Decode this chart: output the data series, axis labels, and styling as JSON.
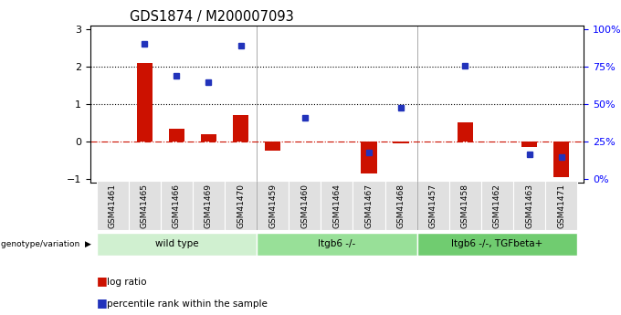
{
  "title": "GDS1874 / M200007093",
  "samples": [
    "GSM41461",
    "GSM41465",
    "GSM41466",
    "GSM41469",
    "GSM41470",
    "GSM41459",
    "GSM41460",
    "GSM41464",
    "GSM41467",
    "GSM41468",
    "GSM41457",
    "GSM41458",
    "GSM41462",
    "GSM41463",
    "GSM41471"
  ],
  "log_ratio": [
    0.0,
    2.1,
    0.35,
    0.2,
    0.7,
    -0.25,
    0.0,
    0.0,
    -0.85,
    -0.05,
    0.0,
    0.5,
    0.0,
    -0.15,
    -0.95
  ],
  "percentile": [
    null,
    2.6,
    1.75,
    1.58,
    2.55,
    null,
    0.62,
    null,
    -0.3,
    0.9,
    null,
    2.02,
    null,
    -0.35,
    -0.42
  ],
  "groups": [
    {
      "label": "wild type",
      "start": 0,
      "end": 4,
      "color": "#d0f0d0"
    },
    {
      "label": "Itgb6 -/-",
      "start": 5,
      "end": 9,
      "color": "#98e098"
    },
    {
      "label": "Itgb6 -/-, TGFbeta+",
      "start": 10,
      "end": 14,
      "color": "#70cc70"
    }
  ],
  "group_boundaries": [
    4.5,
    9.5
  ],
  "ylim": [
    -1.1,
    3.1
  ],
  "bar_color": "#cc1100",
  "dot_color": "#2233bb",
  "dotted_lines": [
    1.0,
    2.0
  ],
  "right_tick_positions": [
    -1,
    0,
    1,
    2,
    3
  ],
  "right_tick_labels": [
    "0%",
    "25%",
    "50%",
    "75%",
    "100%"
  ],
  "left_ticks": [
    -1,
    0,
    1,
    2,
    3
  ],
  "xlabel_fontsize": 6.5,
  "title_fontsize": 10.5,
  "tick_label_fontsize": 8
}
